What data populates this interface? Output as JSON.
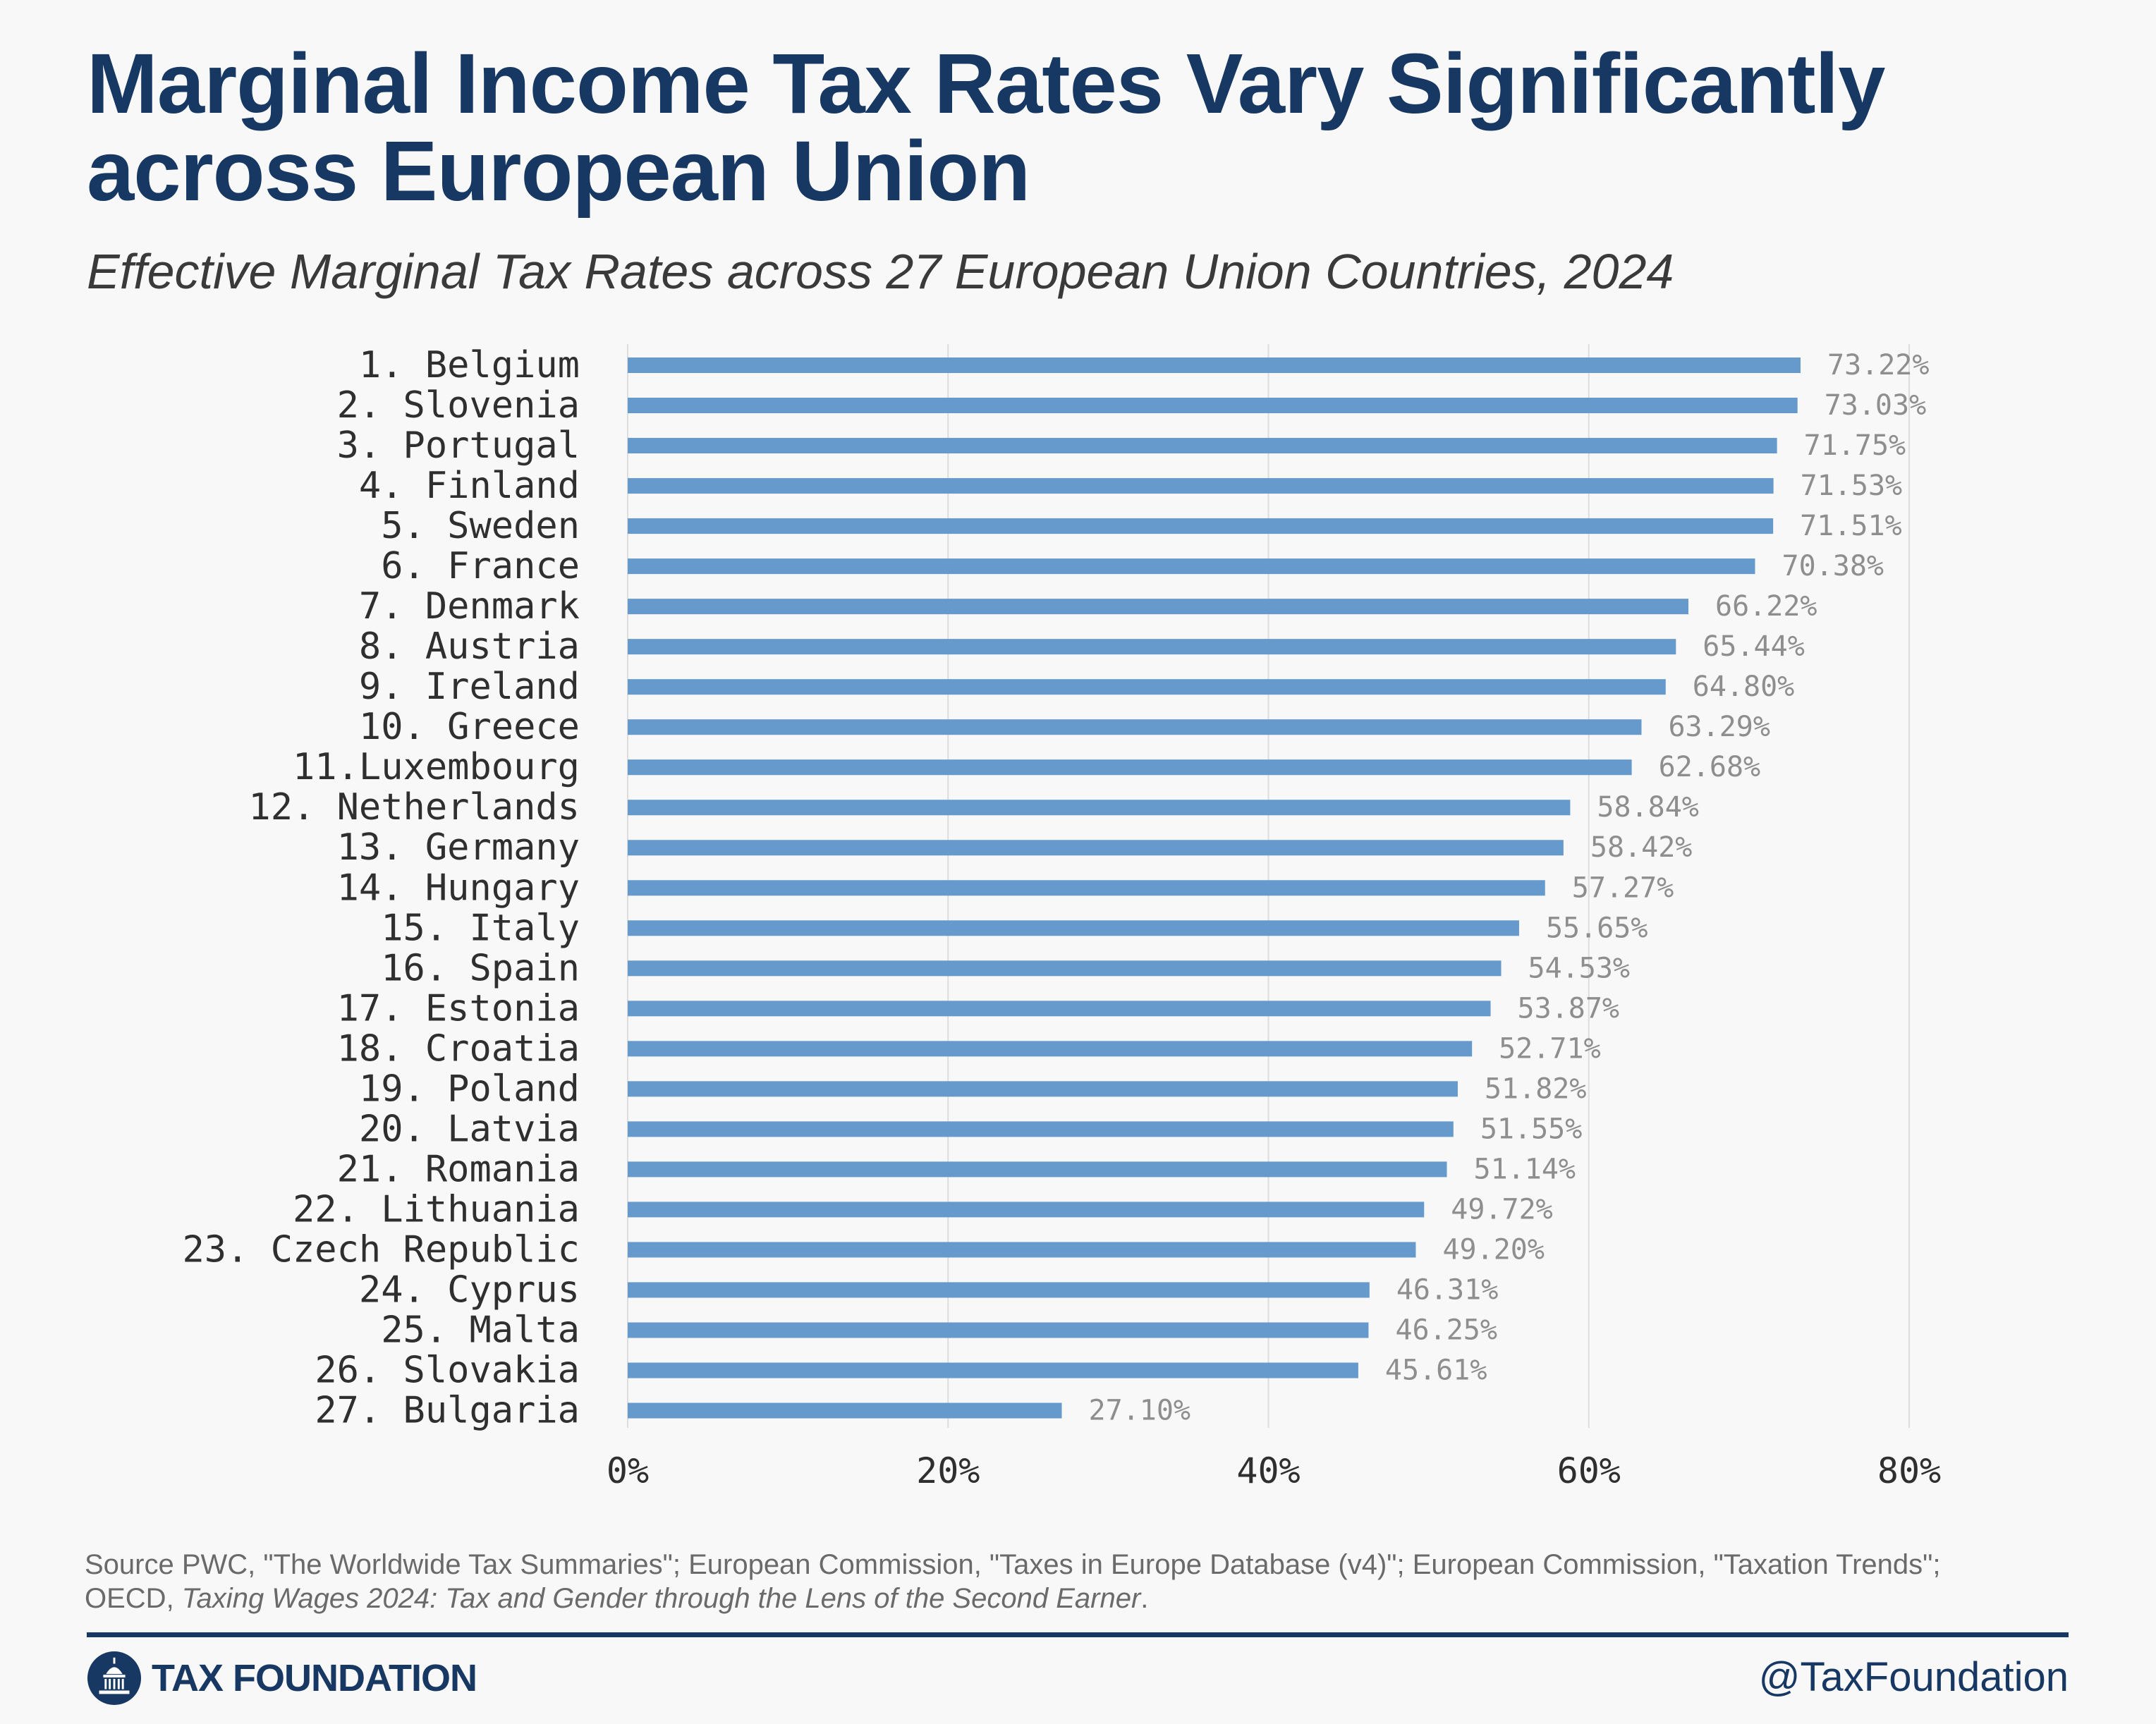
{
  "header": {
    "title_line1": "Marginal Income Tax Rates Vary Significantly",
    "title_line2": "across European Union",
    "subtitle": "Effective Marginal Tax Rates across 27 European Union Countries, 2024"
  },
  "chart_data": {
    "type": "bar",
    "orientation": "horizontal",
    "categories": [
      "1. Belgium",
      "2. Slovenia",
      "3. Portugal",
      "4. Finland",
      "5. Sweden",
      "6.  France",
      "7. Denmark",
      "8. Austria",
      "9.  Ireland",
      "10. Greece",
      "11.Luxembourg",
      "12. Netherlands",
      "13. Germany",
      "14. Hungary",
      "15. Italy",
      "16. Spain",
      "17. Estonia",
      "18. Croatia",
      "19. Poland",
      "20. Latvia",
      "21. Romania",
      "22. Lithuania",
      "23. Czech Republic",
      "24. Cyprus",
      "25. Malta",
      "26. Slovakia",
      "27. Bulgaria"
    ],
    "values": [
      73.22,
      73.03,
      71.75,
      71.53,
      71.51,
      70.38,
      66.22,
      65.44,
      64.8,
      63.29,
      62.68,
      58.84,
      58.42,
      57.27,
      55.65,
      54.53,
      53.87,
      52.71,
      51.82,
      51.55,
      51.14,
      49.72,
      49.2,
      46.31,
      46.25,
      45.61,
      27.1
    ],
    "value_labels": [
      "73.22%",
      "73.03%",
      "71.75%",
      "71.53%",
      "71.51%",
      "70.38%",
      "66.22%",
      "65.44%",
      "64.80%",
      "63.29%",
      "62.68%",
      "58.84%",
      "58.42%",
      "57.27%",
      "55.65%",
      "54.53%",
      "53.87%",
      "52.71%",
      "51.82%",
      "51.55%",
      "51.14%",
      "49.72%",
      "49.20%",
      "46.31%",
      "46.25%",
      "45.61%",
      "27.10%"
    ],
    "xlim": [
      0,
      80
    ],
    "x_ticks": [
      0,
      20,
      40,
      60,
      80
    ],
    "x_tick_labels": [
      "0%",
      "20%",
      "40%",
      "60%",
      "80%"
    ],
    "grid": true,
    "legend": "none",
    "bar_color": "#6699cc"
  },
  "footer": {
    "source_line1": "Source PWC, \"The Worldwide Tax Summaries\"; European Commission, \"Taxes in Europe Database (v4)\"; European Commission, \"Taxation Trends\";",
    "source_line2_prefix": "OECD, ",
    "source_line2_italic": "Taxing Wages 2024: Tax and Gender through the Lens of the Second Earner",
    "source_line2_suffix": ".",
    "brand": "TAX FOUNDATION",
    "handle": "@TaxFoundation"
  },
  "colors": {
    "title": "#173862",
    "bar": "#6699cc",
    "grid": "#dddddd"
  }
}
